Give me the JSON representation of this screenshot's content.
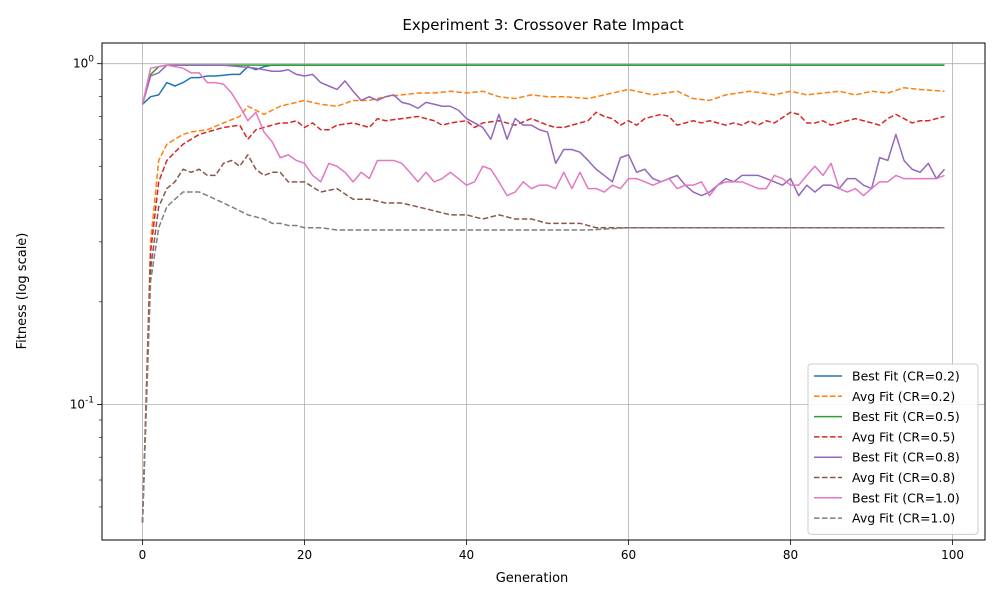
{
  "chart_data": {
    "type": "line",
    "title": "Experiment 3: Crossover Rate Impact",
    "xlabel": "Generation",
    "ylabel": "Fitness (log scale)",
    "xlim": [
      -5,
      104
    ],
    "ylim": [
      0.04,
      1.15
    ],
    "yscale": "log",
    "grid": true,
    "legend_position": "lower-right",
    "x_ticks": [
      0,
      20,
      40,
      60,
      80,
      100
    ],
    "y_ticks": [
      {
        "value": 0.1,
        "label": "10^-1"
      },
      {
        "value": 1,
        "label": "10^0"
      }
    ],
    "series": [
      {
        "name": "Best Fit (CR=0.2)",
        "color": "#1f77b4",
        "dash": "solid",
        "x": [
          0,
          1,
          2,
          3,
          4,
          5,
          6,
          7,
          8,
          9,
          10,
          11,
          12,
          13,
          14,
          15,
          16,
          17,
          18,
          19,
          20,
          22,
          25,
          30,
          35,
          40,
          45,
          50,
          55,
          60,
          65,
          70,
          75,
          80,
          85,
          90,
          95,
          99
        ],
        "y": [
          0.76,
          0.8,
          0.81,
          0.88,
          0.86,
          0.88,
          0.91,
          0.91,
          0.92,
          0.92,
          0.925,
          0.93,
          0.93,
          0.98,
          0.96,
          0.98,
          0.99,
          0.99,
          0.99,
          0.99,
          0.99,
          0.99,
          0.99,
          0.99,
          0.99,
          0.99,
          0.99,
          0.99,
          0.99,
          0.99,
          0.99,
          0.99,
          0.99,
          0.99,
          0.99,
          0.99,
          0.99,
          0.99
        ]
      },
      {
        "name": "Avg Fit (CR=0.2)",
        "color": "#ff7f0e",
        "dash": "dashed",
        "x": [
          0,
          1,
          2,
          3,
          4,
          5,
          6,
          8,
          10,
          12,
          13,
          14,
          15,
          16,
          17,
          18,
          20,
          22,
          24,
          26,
          28,
          30,
          32,
          34,
          36,
          38,
          40,
          42,
          44,
          46,
          48,
          50,
          52,
          55,
          58,
          60,
          63,
          66,
          68,
          70,
          72,
          75,
          78,
          80,
          82,
          84,
          86,
          88,
          90,
          92,
          94,
          96,
          99
        ],
        "y": [
          0.045,
          0.3,
          0.52,
          0.58,
          0.6,
          0.62,
          0.63,
          0.64,
          0.67,
          0.7,
          0.75,
          0.73,
          0.71,
          0.73,
          0.75,
          0.76,
          0.78,
          0.76,
          0.75,
          0.78,
          0.78,
          0.8,
          0.81,
          0.82,
          0.82,
          0.83,
          0.82,
          0.83,
          0.8,
          0.79,
          0.81,
          0.8,
          0.8,
          0.79,
          0.82,
          0.84,
          0.81,
          0.83,
          0.79,
          0.78,
          0.81,
          0.83,
          0.81,
          0.83,
          0.81,
          0.82,
          0.83,
          0.81,
          0.83,
          0.82,
          0.85,
          0.84,
          0.83
        ]
      },
      {
        "name": "Best Fit (CR=0.5)",
        "color": "#2ca02c",
        "dash": "solid",
        "x": [
          0,
          1,
          2,
          3,
          4,
          5,
          10,
          15,
          20,
          25,
          30,
          35,
          40,
          45,
          50,
          55,
          60,
          65,
          70,
          75,
          80,
          85,
          90,
          95,
          99
        ],
        "y": [
          0.76,
          0.93,
          0.98,
          0.99,
          0.99,
          0.99,
          0.99,
          0.99,
          0.99,
          0.99,
          0.99,
          0.99,
          0.99,
          0.99,
          0.99,
          0.99,
          0.99,
          0.99,
          0.99,
          0.99,
          0.99,
          0.99,
          0.99,
          0.99,
          0.99
        ]
      },
      {
        "name": "Avg Fit (CR=0.5)",
        "color": "#d62728",
        "dash": "dashed",
        "x": [
          0,
          1,
          2,
          3,
          4,
          5,
          6,
          7,
          8,
          10,
          12,
          13,
          14,
          16,
          17,
          18,
          19,
          20,
          21,
          22,
          23,
          24,
          26,
          27,
          28,
          29,
          30,
          32,
          34,
          36,
          37,
          38,
          40,
          41,
          42,
          44,
          46,
          48,
          50,
          51,
          52,
          54,
          55,
          56,
          57,
          58,
          59,
          60,
          61,
          62,
          63,
          64,
          65,
          66,
          67,
          68,
          69,
          70,
          72,
          73,
          74,
          75,
          76,
          77,
          78,
          80,
          81,
          82,
          83,
          84,
          85,
          86,
          88,
          89,
          90,
          91,
          92,
          93,
          94,
          95,
          96,
          97,
          98,
          99
        ],
        "y": [
          0.045,
          0.28,
          0.45,
          0.52,
          0.55,
          0.58,
          0.6,
          0.62,
          0.63,
          0.65,
          0.66,
          0.6,
          0.64,
          0.66,
          0.67,
          0.67,
          0.68,
          0.65,
          0.67,
          0.64,
          0.64,
          0.66,
          0.67,
          0.66,
          0.65,
          0.69,
          0.68,
          0.69,
          0.7,
          0.68,
          0.66,
          0.67,
          0.68,
          0.65,
          0.67,
          0.68,
          0.66,
          0.69,
          0.66,
          0.65,
          0.65,
          0.67,
          0.68,
          0.72,
          0.7,
          0.69,
          0.66,
          0.68,
          0.66,
          0.69,
          0.7,
          0.71,
          0.7,
          0.66,
          0.67,
          0.68,
          0.67,
          0.68,
          0.66,
          0.67,
          0.66,
          0.68,
          0.66,
          0.68,
          0.67,
          0.72,
          0.71,
          0.67,
          0.67,
          0.68,
          0.66,
          0.67,
          0.69,
          0.68,
          0.67,
          0.66,
          0.69,
          0.71,
          0.69,
          0.67,
          0.68,
          0.68,
          0.69,
          0.7
        ]
      },
      {
        "name": "Best Fit (CR=0.8)",
        "color": "#9467bd",
        "dash": "solid",
        "x": [
          0,
          1,
          2,
          3,
          4,
          5,
          6,
          8,
          10,
          12,
          14,
          15,
          16,
          17,
          18,
          19,
          20,
          21,
          22,
          23,
          24,
          25,
          26,
          27,
          28,
          29,
          30,
          31,
          32,
          33,
          34,
          35,
          36,
          37,
          38,
          39,
          40,
          41,
          42,
          43,
          44,
          45,
          46,
          47,
          48,
          49,
          50,
          51,
          52,
          53,
          54,
          55,
          56,
          57,
          58,
          59,
          60,
          61,
          62,
          63,
          64,
          65,
          66,
          67,
          68,
          69,
          70,
          71,
          72,
          73,
          74,
          75,
          76,
          77,
          78,
          79,
          80,
          81,
          82,
          83,
          84,
          85,
          86,
          87,
          88,
          89,
          90,
          91,
          92,
          93,
          94,
          95,
          96,
          97,
          98,
          99
        ],
        "y": [
          0.76,
          0.92,
          0.94,
          0.99,
          0.99,
          0.99,
          0.99,
          0.99,
          0.99,
          0.98,
          0.97,
          0.96,
          0.95,
          0.95,
          0.96,
          0.93,
          0.92,
          0.93,
          0.88,
          0.86,
          0.84,
          0.89,
          0.83,
          0.78,
          0.8,
          0.78,
          0.8,
          0.81,
          0.77,
          0.76,
          0.74,
          0.77,
          0.76,
          0.75,
          0.75,
          0.73,
          0.69,
          0.67,
          0.65,
          0.6,
          0.71,
          0.6,
          0.69,
          0.66,
          0.66,
          0.64,
          0.63,
          0.51,
          0.56,
          0.56,
          0.55,
          0.52,
          0.49,
          0.47,
          0.45,
          0.53,
          0.54,
          0.48,
          0.49,
          0.46,
          0.45,
          0.46,
          0.47,
          0.44,
          0.42,
          0.41,
          0.42,
          0.44,
          0.46,
          0.45,
          0.47,
          0.47,
          0.47,
          0.46,
          0.45,
          0.44,
          0.46,
          0.41,
          0.44,
          0.42,
          0.44,
          0.44,
          0.43,
          0.46,
          0.46,
          0.44,
          0.43,
          0.53,
          0.52,
          0.62,
          0.52,
          0.49,
          0.48,
          0.51,
          0.46,
          0.49
        ]
      },
      {
        "name": "Avg Fit (CR=0.8)",
        "color": "#8c564b",
        "dash": "dashed",
        "x": [
          0,
          1,
          2,
          3,
          4,
          5,
          6,
          7,
          8,
          9,
          10,
          11,
          12,
          13,
          14,
          15,
          16,
          17,
          18,
          19,
          20,
          22,
          24,
          26,
          28,
          30,
          32,
          34,
          36,
          38,
          40,
          42,
          44,
          46,
          48,
          50,
          52,
          54,
          56,
          58,
          60,
          65,
          70,
          75,
          80,
          85,
          90,
          95,
          99
        ],
        "y": [
          0.045,
          0.25,
          0.38,
          0.43,
          0.45,
          0.49,
          0.48,
          0.49,
          0.47,
          0.47,
          0.51,
          0.52,
          0.5,
          0.54,
          0.49,
          0.47,
          0.48,
          0.48,
          0.45,
          0.45,
          0.45,
          0.42,
          0.43,
          0.4,
          0.4,
          0.39,
          0.39,
          0.38,
          0.37,
          0.36,
          0.36,
          0.35,
          0.36,
          0.35,
          0.35,
          0.34,
          0.34,
          0.34,
          0.33,
          0.33,
          0.33,
          0.33,
          0.33,
          0.33,
          0.33,
          0.33,
          0.33,
          0.33,
          0.33
        ]
      },
      {
        "name": "Best Fit (CR=1.0)",
        "color": "#e377c2",
        "dash": "solid",
        "x": [
          0,
          1,
          2,
          3,
          4,
          5,
          6,
          7,
          8,
          9,
          10,
          11,
          12,
          13,
          14,
          15,
          16,
          17,
          18,
          19,
          20,
          21,
          22,
          23,
          24,
          25,
          26,
          27,
          28,
          29,
          30,
          31,
          32,
          33,
          34,
          35,
          36,
          37,
          38,
          39,
          40,
          41,
          42,
          43,
          44,
          45,
          46,
          47,
          48,
          49,
          50,
          51,
          52,
          53,
          54,
          55,
          56,
          57,
          58,
          59,
          60,
          61,
          62,
          63,
          64,
          65,
          66,
          67,
          68,
          69,
          70,
          71,
          72,
          73,
          74,
          75,
          76,
          77,
          78,
          79,
          80,
          81,
          82,
          83,
          84,
          85,
          86,
          87,
          88,
          89,
          90,
          91,
          92,
          93,
          94,
          95,
          96,
          97,
          98,
          99
        ],
        "y": [
          0.76,
          0.97,
          0.98,
          0.99,
          0.98,
          0.97,
          0.94,
          0.94,
          0.88,
          0.88,
          0.87,
          0.82,
          0.75,
          0.68,
          0.72,
          0.63,
          0.59,
          0.53,
          0.54,
          0.52,
          0.51,
          0.47,
          0.45,
          0.51,
          0.5,
          0.48,
          0.45,
          0.48,
          0.46,
          0.52,
          0.52,
          0.52,
          0.51,
          0.48,
          0.45,
          0.48,
          0.45,
          0.46,
          0.48,
          0.46,
          0.44,
          0.45,
          0.5,
          0.49,
          0.45,
          0.41,
          0.42,
          0.45,
          0.43,
          0.44,
          0.44,
          0.43,
          0.48,
          0.43,
          0.48,
          0.43,
          0.43,
          0.42,
          0.44,
          0.43,
          0.46,
          0.46,
          0.45,
          0.44,
          0.45,
          0.46,
          0.43,
          0.44,
          0.44,
          0.45,
          0.41,
          0.44,
          0.45,
          0.45,
          0.45,
          0.44,
          0.43,
          0.43,
          0.47,
          0.46,
          0.44,
          0.44,
          0.47,
          0.5,
          0.47,
          0.51,
          0.43,
          0.42,
          0.43,
          0.41,
          0.43,
          0.45,
          0.45,
          0.47,
          0.46,
          0.46,
          0.46,
          0.46,
          0.46,
          0.47
        ]
      },
      {
        "name": "Avg Fit (CR=1.0)",
        "color": "#7f7f7f",
        "dash": "dashed",
        "x": [
          0,
          1,
          2,
          3,
          4,
          5,
          6,
          7,
          8,
          9,
          10,
          11,
          12,
          13,
          14,
          15,
          16,
          17,
          18,
          19,
          20,
          22,
          24,
          26,
          28,
          30,
          35,
          40,
          45,
          50,
          55,
          60,
          65,
          70,
          75,
          80,
          85,
          90,
          95,
          99
        ],
        "y": [
          0.045,
          0.23,
          0.33,
          0.38,
          0.4,
          0.42,
          0.42,
          0.42,
          0.41,
          0.4,
          0.39,
          0.38,
          0.37,
          0.36,
          0.355,
          0.35,
          0.34,
          0.34,
          0.335,
          0.335,
          0.33,
          0.33,
          0.325,
          0.325,
          0.325,
          0.325,
          0.325,
          0.325,
          0.325,
          0.325,
          0.325,
          0.33,
          0.33,
          0.33,
          0.33,
          0.33,
          0.33,
          0.33,
          0.33,
          0.33
        ]
      }
    ]
  }
}
